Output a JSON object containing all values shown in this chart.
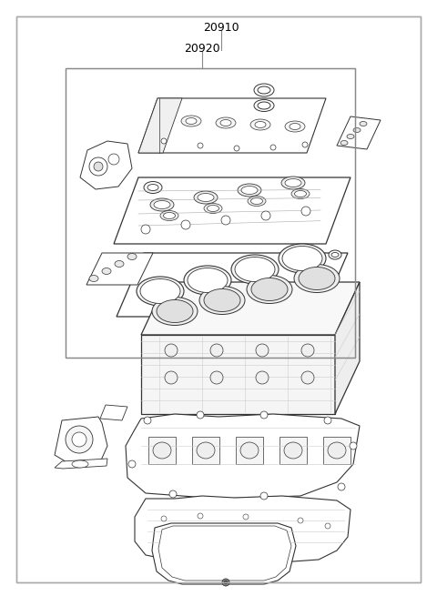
{
  "label_20910": "20910",
  "label_20920": "20920",
  "bg_color": "#ffffff",
  "border_color": "#aaaaaa",
  "inner_box_color": "#888888",
  "line_color": "#333333",
  "fig_width": 4.8,
  "fig_height": 6.55,
  "dpi": 100
}
